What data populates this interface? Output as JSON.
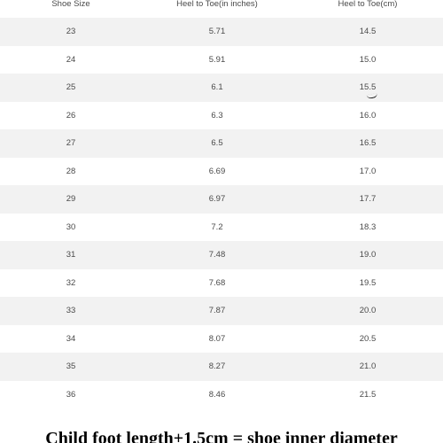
{
  "table": {
    "headers": [
      "Shoe Size",
      "Heel to Toe(in inches)",
      "Heel to Toe(cm)"
    ],
    "rows": [
      [
        "23",
        "5.71",
        "14.5"
      ],
      [
        "24",
        "5.91",
        "15.0"
      ],
      [
        "25",
        "6.1",
        "15.5"
      ],
      [
        "26",
        "6.3",
        "16.0"
      ],
      [
        "27",
        "6.5",
        "16.5"
      ],
      [
        "28",
        "6.69",
        "17.0"
      ],
      [
        "29",
        "6.97",
        "17.7"
      ],
      [
        "30",
        "7.2",
        "18.3"
      ],
      [
        "31",
        "7.48",
        "19.0"
      ],
      [
        "32",
        "7.68",
        "19.5"
      ],
      [
        "33",
        "7.87",
        "20.0"
      ],
      [
        "34",
        "8.07",
        "20.5"
      ],
      [
        "35",
        "8.27",
        "21.0"
      ],
      [
        "36",
        "8.46",
        "21.5"
      ]
    ]
  },
  "footer": {
    "text": "Child foot length+1.5cm = shoe inner diameter"
  },
  "colors": {
    "row_shade": "#f2f2f2",
    "text": "#4a4a4a"
  }
}
